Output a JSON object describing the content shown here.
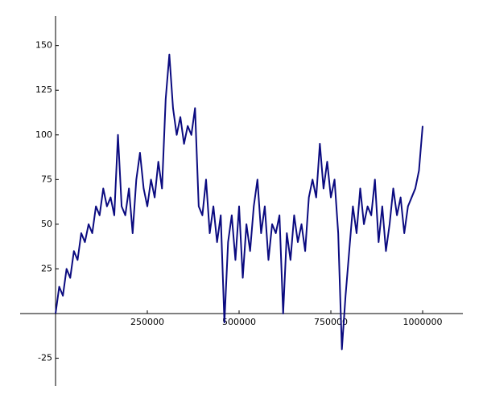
{
  "chart_data": {
    "type": "line",
    "x": [
      0,
      10000,
      20000,
      30000,
      40000,
      50000,
      60000,
      70000,
      80000,
      90000,
      100000,
      110000,
      120000,
      130000,
      140000,
      150000,
      160000,
      170000,
      180000,
      190000,
      200000,
      210000,
      220000,
      230000,
      240000,
      250000,
      260000,
      270000,
      280000,
      290000,
      300000,
      310000,
      320000,
      330000,
      340000,
      350000,
      360000,
      370000,
      380000,
      390000,
      400000,
      410000,
      420000,
      430000,
      440000,
      450000,
      460000,
      470000,
      480000,
      490000,
      500000,
      510000,
      520000,
      530000,
      540000,
      550000,
      560000,
      570000,
      580000,
      590000,
      600000,
      610000,
      620000,
      630000,
      640000,
      650000,
      660000,
      670000,
      680000,
      690000,
      700000,
      710000,
      720000,
      730000,
      740000,
      750000,
      760000,
      770000,
      780000,
      790000,
      800000,
      810000,
      820000,
      830000,
      840000,
      850000,
      860000,
      870000,
      880000,
      890000,
      900000,
      910000,
      920000,
      930000,
      940000,
      950000,
      960000,
      970000,
      980000,
      990000,
      1000000
    ],
    "series": [
      {
        "color": "#0b0b80",
        "values": [
          0,
          15,
          10,
          25,
          20,
          35,
          30,
          45,
          40,
          50,
          45,
          60,
          55,
          70,
          60,
          65,
          55,
          100,
          60,
          55,
          70,
          45,
          75,
          90,
          70,
          60,
          75,
          65,
          85,
          70,
          120,
          145,
          115,
          100,
          110,
          95,
          105,
          100,
          115,
          60,
          55,
          75,
          45,
          60,
          40,
          55,
          -5,
          40,
          55,
          30,
          60,
          20,
          50,
          35,
          60,
          75,
          45,
          60,
          30,
          50,
          45,
          55,
          0,
          45,
          30,
          55,
          40,
          50,
          35,
          65,
          75,
          65,
          95,
          70,
          85,
          65,
          75,
          45,
          -20,
          10,
          35,
          60,
          45,
          70,
          50,
          60,
          55,
          75,
          40,
          60,
          35,
          50,
          70,
          55,
          65,
          45,
          60,
          65,
          70,
          80,
          105
        ]
      }
    ],
    "xlim": [
      -96500,
      1109600
    ],
    "ylim": [
      -40.5,
      166.5
    ],
    "xticks": [
      250000,
      500000,
      750000,
      1000000
    ],
    "yticks": [
      -25,
      25,
      50,
      75,
      100,
      125,
      150
    ]
  }
}
